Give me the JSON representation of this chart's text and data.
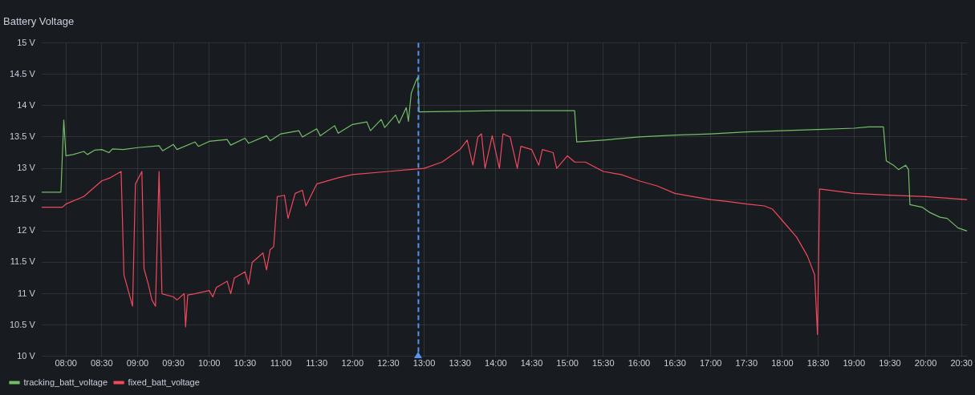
{
  "chart_data": {
    "type": "line",
    "title": "Battery Voltage",
    "series": [
      {
        "name": "tracking_batt_voltage",
        "color": "#73bf69",
        "x": [
          7.66,
          7.93,
          7.97,
          8.0,
          8.1,
          8.25,
          8.3,
          8.4,
          8.5,
          8.6,
          8.65,
          8.8,
          9.0,
          9.3,
          9.35,
          9.5,
          9.55,
          9.8,
          9.85,
          10.0,
          10.25,
          10.3,
          10.5,
          10.55,
          10.8,
          10.85,
          11.0,
          11.25,
          11.3,
          11.5,
          11.55,
          11.75,
          11.8,
          12.0,
          12.2,
          12.25,
          12.4,
          12.45,
          12.6,
          12.65,
          12.75,
          12.78,
          12.82,
          12.88,
          12.91,
          12.93,
          13.5,
          14.0,
          15.0,
          15.1,
          15.13,
          15.5,
          16.0,
          16.5,
          17.0,
          17.5,
          18.0,
          18.5,
          19.0,
          19.2,
          19.41,
          19.45,
          19.55,
          19.62,
          19.72,
          19.76,
          19.78,
          19.95,
          20.05,
          20.2,
          20.3,
          20.45,
          20.58
        ],
        "values": [
          12.62,
          12.62,
          13.77,
          13.2,
          13.22,
          13.27,
          13.22,
          13.29,
          13.3,
          13.25,
          13.31,
          13.3,
          13.33,
          13.36,
          13.28,
          13.38,
          13.3,
          13.42,
          13.35,
          13.43,
          13.46,
          13.37,
          13.48,
          13.4,
          13.52,
          13.44,
          13.55,
          13.6,
          13.5,
          13.63,
          13.52,
          13.68,
          13.56,
          13.7,
          13.74,
          13.6,
          13.78,
          13.65,
          13.85,
          13.72,
          13.97,
          13.75,
          14.2,
          14.38,
          14.45,
          13.9,
          13.91,
          13.92,
          13.92,
          13.92,
          13.42,
          13.45,
          13.5,
          13.53,
          13.55,
          13.58,
          13.6,
          13.62,
          13.64,
          13.66,
          13.66,
          13.12,
          13.05,
          12.98,
          13.05,
          12.98,
          12.42,
          12.38,
          12.3,
          12.22,
          12.2,
          12.05,
          12.0
        ]
      },
      {
        "name": "fixed_batt_voltage",
        "color": "#f2495c",
        "x": [
          7.66,
          7.95,
          8.0,
          8.25,
          8.5,
          8.62,
          8.77,
          8.81,
          8.93,
          8.97,
          9.06,
          9.09,
          9.15,
          9.2,
          9.25,
          9.3,
          9.34,
          9.5,
          9.55,
          9.65,
          9.67,
          9.7,
          9.8,
          10.0,
          10.05,
          10.1,
          10.25,
          10.3,
          10.35,
          10.5,
          10.55,
          10.6,
          10.75,
          10.8,
          10.85,
          10.9,
          10.95,
          11.05,
          11.1,
          11.2,
          11.3,
          11.35,
          11.5,
          11.8,
          12.0,
          12.5,
          13.0,
          13.25,
          13.5,
          13.6,
          13.68,
          13.75,
          13.8,
          13.85,
          13.95,
          14.05,
          14.1,
          14.2,
          14.3,
          14.35,
          14.5,
          14.6,
          14.65,
          14.8,
          14.85,
          15.0,
          15.1,
          15.25,
          15.5,
          15.75,
          16.0,
          16.25,
          16.5,
          16.75,
          17.0,
          17.25,
          17.5,
          17.75,
          17.86,
          18.05,
          18.2,
          18.35,
          18.45,
          18.49,
          18.52,
          19.0,
          19.5,
          20.0,
          20.58
        ],
        "values": [
          12.38,
          12.38,
          12.43,
          12.55,
          12.8,
          12.85,
          12.95,
          11.3,
          10.8,
          12.75,
          12.95,
          11.4,
          11.15,
          10.9,
          10.8,
          12.95,
          11.0,
          10.95,
          10.9,
          11.0,
          10.47,
          10.98,
          11.0,
          11.05,
          10.95,
          11.1,
          11.2,
          11.0,
          11.25,
          11.35,
          11.15,
          11.5,
          11.65,
          11.38,
          11.7,
          11.75,
          12.55,
          12.57,
          12.2,
          12.6,
          12.65,
          12.4,
          12.75,
          12.85,
          12.9,
          12.95,
          13.0,
          13.1,
          13.3,
          13.45,
          13.05,
          13.5,
          13.55,
          13.0,
          13.52,
          13.0,
          13.55,
          13.5,
          13.0,
          13.35,
          13.3,
          13.05,
          13.3,
          13.25,
          13.0,
          13.2,
          13.1,
          13.1,
          12.95,
          12.9,
          12.8,
          12.72,
          12.6,
          12.55,
          12.5,
          12.47,
          12.43,
          12.4,
          12.35,
          12.1,
          11.9,
          11.6,
          11.3,
          10.35,
          12.67,
          12.6,
          12.57,
          12.55,
          12.5
        ]
      }
    ],
    "xlim": [
      7.66,
      20.58
    ],
    "xticks": [
      {
        "value": 8,
        "label": "08:00"
      },
      {
        "value": 8.5,
        "label": "08:30"
      },
      {
        "value": 9,
        "label": "09:00"
      },
      {
        "value": 9.5,
        "label": "09:30"
      },
      {
        "value": 10,
        "label": "10:00"
      },
      {
        "value": 10.5,
        "label": "10:30"
      },
      {
        "value": 11,
        "label": "11:00"
      },
      {
        "value": 11.5,
        "label": "11:30"
      },
      {
        "value": 12,
        "label": "12:00"
      },
      {
        "value": 12.5,
        "label": "12:30"
      },
      {
        "value": 13,
        "label": "13:00"
      },
      {
        "value": 13.5,
        "label": "13:30"
      },
      {
        "value": 14,
        "label": "14:00"
      },
      {
        "value": 14.5,
        "label": "14:30"
      },
      {
        "value": 15,
        "label": "15:00"
      },
      {
        "value": 15.5,
        "label": "15:30"
      },
      {
        "value": 16,
        "label": "16:00"
      },
      {
        "value": 16.5,
        "label": "16:30"
      },
      {
        "value": 17,
        "label": "17:00"
      },
      {
        "value": 17.5,
        "label": "17:30"
      },
      {
        "value": 18,
        "label": "18:00"
      },
      {
        "value": 18.5,
        "label": "18:30"
      },
      {
        "value": 19,
        "label": "19:00"
      },
      {
        "value": 19.5,
        "label": "19:30"
      },
      {
        "value": 20,
        "label": "20:00"
      },
      {
        "value": 20.5,
        "label": "20:30"
      }
    ],
    "ylim": [
      10,
      15
    ],
    "yticks": [
      {
        "value": 10,
        "label": "10 V"
      },
      {
        "value": 10.5,
        "label": "10.5 V"
      },
      {
        "value": 11,
        "label": "11 V"
      },
      {
        "value": 11.5,
        "label": "11.5 V"
      },
      {
        "value": 12,
        "label": "12 V"
      },
      {
        "value": 12.5,
        "label": "12.5 V"
      },
      {
        "value": 13,
        "label": "13 V"
      },
      {
        "value": 13.5,
        "label": "13.5 V"
      },
      {
        "value": 14,
        "label": "14 V"
      },
      {
        "value": 14.5,
        "label": "14.5 V"
      },
      {
        "value": 15,
        "label": "15 V"
      }
    ],
    "ref_lines": [
      {
        "axis": "x",
        "value": 12.92,
        "color": "#5794f2",
        "line_style": "dashed"
      }
    ],
    "grid": true,
    "legend": "bottom left",
    "marker": "none",
    "line_style": "solid"
  }
}
